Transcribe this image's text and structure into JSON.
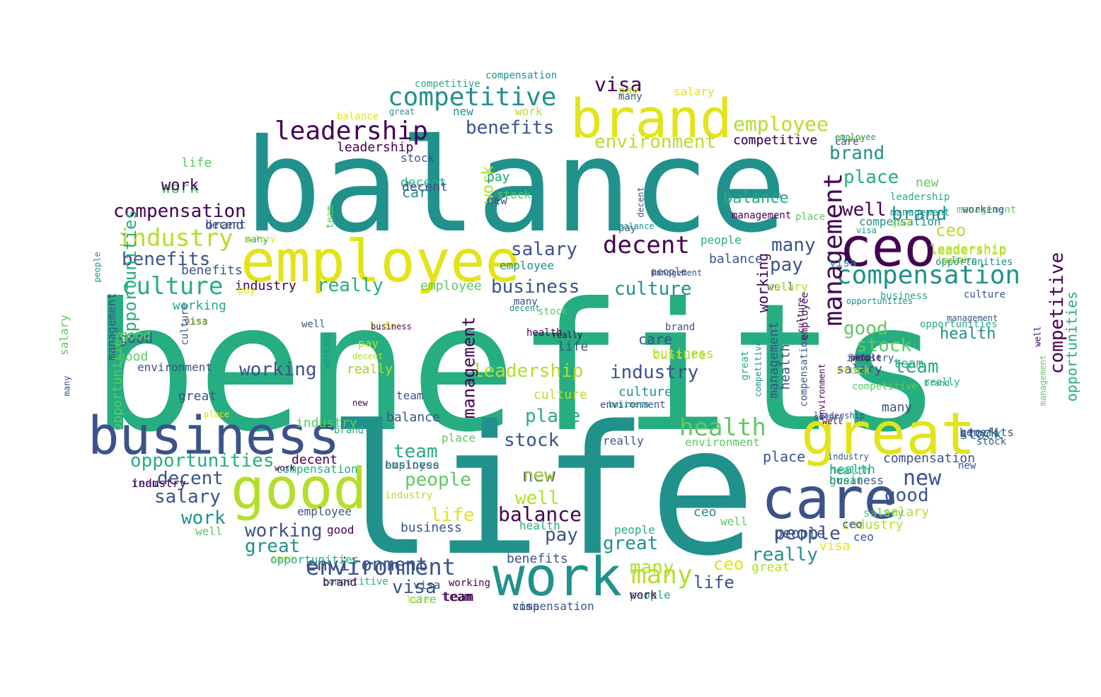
{
  "palette": {
    "c1": "#440154",
    "c2": "#3b528b",
    "c3": "#21918c",
    "c4": "#26ad81",
    "c5": "#5ec962",
    "c6": "#b5de2b",
    "c7": "#e2e418"
  },
  "words": [
    {
      "text": "benefits",
      "c": "c4"
    },
    {
      "text": "life",
      "c": "c3"
    },
    {
      "text": "balance",
      "c": "c3"
    },
    {
      "text": "employee",
      "c": "c7"
    },
    {
      "text": "brand",
      "c": "c7"
    },
    {
      "text": "business",
      "c": "c2"
    },
    {
      "text": "great",
      "c": "c7"
    },
    {
      "text": "care",
      "c": "c2"
    },
    {
      "text": "good",
      "c": "c6"
    },
    {
      "text": "work",
      "c": "c3"
    },
    {
      "text": "ceo",
      "c": "c1"
    },
    {
      "text": "competitive",
      "c": "c3"
    },
    {
      "text": "leadership",
      "c": "c1"
    },
    {
      "text": "compensation",
      "c": "c3"
    },
    {
      "text": "management",
      "c": "c1"
    },
    {
      "text": "industry",
      "c": "c6"
    },
    {
      "text": "culture",
      "c": "c4"
    },
    {
      "text": "decent",
      "c": "c1"
    },
    {
      "text": "environment",
      "c": "c2"
    },
    {
      "text": "health",
      "c": "c5"
    },
    {
      "text": "visa",
      "c": "c1"
    },
    {
      "text": "benefits",
      "c": "c2"
    },
    {
      "text": "employee",
      "c": "c6"
    },
    {
      "text": "environment",
      "c": "c6"
    },
    {
      "text": "compensation",
      "c": "c1"
    },
    {
      "text": "benefits",
      "c": "c2"
    },
    {
      "text": "salary",
      "c": "c2"
    },
    {
      "text": "business",
      "c": "c2"
    },
    {
      "text": "really",
      "c": "c4"
    },
    {
      "text": "culture",
      "c": "c3"
    },
    {
      "text": "industry",
      "c": "c2"
    },
    {
      "text": "working",
      "c": "c2"
    },
    {
      "text": "leadership",
      "c": "c6"
    },
    {
      "text": "opportunities",
      "c": "c4"
    },
    {
      "text": "place",
      "c": "c4"
    },
    {
      "text": "stock",
      "c": "c2"
    },
    {
      "text": "team",
      "c": "c4"
    },
    {
      "text": "new",
      "c": "c2"
    },
    {
      "text": "people",
      "c": "c5"
    },
    {
      "text": "many",
      "c": "c6"
    },
    {
      "text": "pay",
      "c": "c2"
    },
    {
      "text": "brand",
      "c": "c3"
    },
    {
      "text": "brand",
      "c": "c3"
    },
    {
      "text": "place",
      "c": "c4"
    },
    {
      "text": "well",
      "c": "c1"
    },
    {
      "text": "many",
      "c": "c2"
    },
    {
      "text": "pay",
      "c": "c2"
    },
    {
      "text": "ceo",
      "c": "c6"
    },
    {
      "text": "good",
      "c": "c5"
    },
    {
      "text": "stock",
      "c": "c5"
    },
    {
      "text": "team",
      "c": "c4"
    },
    {
      "text": "new",
      "c": "c2"
    },
    {
      "text": "good",
      "c": "c2"
    },
    {
      "text": "competitive",
      "c": "c1"
    },
    {
      "text": "opportunities",
      "c": "c4"
    },
    {
      "text": "salary",
      "c": "c2"
    },
    {
      "text": "decent",
      "c": "c2"
    },
    {
      "text": "work",
      "c": "c3"
    },
    {
      "text": "working",
      "c": "c2"
    },
    {
      "text": "great",
      "c": "c3"
    },
    {
      "text": "environment",
      "c": "c2"
    },
    {
      "text": "visa",
      "c": "c2"
    },
    {
      "text": "team",
      "c": "c1"
    },
    {
      "text": "balance",
      "c": "c4"
    },
    {
      "text": "stock",
      "c": "c3"
    },
    {
      "text": "place",
      "c": "c2"
    },
    {
      "text": "leadership",
      "c": "c6"
    },
    {
      "text": "balance",
      "c": "c1"
    },
    {
      "text": "new",
      "c": "c6"
    },
    {
      "text": "well",
      "c": "c6"
    },
    {
      "text": "life",
      "c": "c7"
    },
    {
      "text": "people",
      "c": "c2"
    },
    {
      "text": "really",
      "c": "c3"
    },
    {
      "text": "ceo",
      "c": "c7"
    },
    {
      "text": "great",
      "c": "c3"
    },
    {
      "text": "many",
      "c": "c6"
    },
    {
      "text": "work",
      "c": "c6"
    },
    {
      "text": "employee",
      "c": "c5"
    },
    {
      "text": "competitive",
      "c": "c2"
    },
    {
      "text": "benefits",
      "c": "c2"
    },
    {
      "text": "business",
      "c": "c2"
    },
    {
      "text": "health",
      "c": "c3"
    },
    {
      "text": "pay",
      "c": "c4"
    },
    {
      "text": "compensation",
      "c": "c2"
    },
    {
      "text": "good",
      "c": "c2"
    },
    {
      "text": "salary",
      "c": "c6"
    },
    {
      "text": "industry",
      "c": "c6"
    },
    {
      "text": "visa",
      "c": "c7"
    },
    {
      "text": "team",
      "c": "c1"
    },
    {
      "text": "people",
      "c": "c4"
    },
    {
      "text": "life",
      "c": "c2"
    },
    {
      "text": "decent",
      "c": "c1"
    },
    {
      "text": "competitive",
      "c": "c4"
    },
    {
      "text": "working",
      "c": "c1"
    },
    {
      "text": "life",
      "c": "c7"
    },
    {
      "text": "compensation",
      "c": "c2"
    },
    {
      "text": "work",
      "c": "c5"
    },
    {
      "text": "leadership",
      "c": "c1"
    },
    {
      "text": "brand",
      "c": "c2"
    },
    {
      "text": "balance",
      "c": "c2"
    },
    {
      "text": "care",
      "c": "c3"
    },
    {
      "text": "industry",
      "c": "c1"
    },
    {
      "text": "culture",
      "c": "c6"
    },
    {
      "text": "business",
      "c": "c6"
    },
    {
      "text": "health",
      "c": "c2"
    },
    {
      "text": "salary",
      "c": "c2"
    },
    {
      "text": "good",
      "c": "c5"
    },
    {
      "text": "stock",
      "c": "c2"
    },
    {
      "text": "work",
      "c": "c1"
    },
    {
      "text": "benefits",
      "c": "c2"
    },
    {
      "text": "employee",
      "c": "c2"
    },
    {
      "text": "really",
      "c": "c3"
    },
    {
      "text": "place",
      "c": "c5"
    },
    {
      "text": "new",
      "c": "c5"
    },
    {
      "text": "team",
      "c": "c4"
    },
    {
      "text": "life",
      "c": "c5"
    },
    {
      "text": "care",
      "c": "c2"
    },
    {
      "text": "culture",
      "c": "c3"
    },
    {
      "text": "pay",
      "c": "c4"
    },
    {
      "text": "ceo",
      "c": "c3"
    },
    {
      "text": "decent",
      "c": "c4"
    },
    {
      "text": "management",
      "c": "c1"
    },
    {
      "text": "opportunities",
      "c": "c4"
    },
    {
      "text": "competitive",
      "c": "c1"
    },
    {
      "text": "people",
      "c": "c2"
    },
    {
      "text": "great",
      "c": "c6"
    },
    {
      "text": "health",
      "c": "c4"
    },
    {
      "text": "management",
      "c": "c2"
    },
    {
      "text": "business",
      "c": "c2"
    },
    {
      "text": "working",
      "c": "c1"
    },
    {
      "text": "industry",
      "c": "c5"
    },
    {
      "text": "visa",
      "c": "c2"
    },
    {
      "text": "employee",
      "c": "c4"
    },
    {
      "text": "environment",
      "c": "c5"
    },
    {
      "text": "well",
      "c": "c5"
    },
    {
      "text": "great",
      "c": "c2"
    },
    {
      "text": "salary",
      "c": "c5"
    },
    {
      "text": "good",
      "c": "c5"
    },
    {
      "text": "really",
      "c": "c6"
    },
    {
      "text": "ceo",
      "c": "c2"
    },
    {
      "text": "pay",
      "c": "c6"
    },
    {
      "text": "team",
      "c": "c2"
    },
    {
      "text": "stock",
      "c": "c2"
    },
    {
      "text": "opportunities",
      "c": "c5"
    },
    {
      "text": "care",
      "c": "c6"
    },
    {
      "text": "life",
      "c": "c2"
    },
    {
      "text": "many",
      "c": "c2"
    },
    {
      "text": "working",
      "c": "c4"
    },
    {
      "text": "compensation",
      "c": "c4"
    },
    {
      "text": "balance",
      "c": "c2"
    },
    {
      "text": "decent",
      "c": "c2"
    },
    {
      "text": "health",
      "c": "c4"
    },
    {
      "text": "culture",
      "c": "c6"
    },
    {
      "text": "leadership",
      "c": "c6"
    },
    {
      "text": "industry",
      "c": "c6"
    },
    {
      "text": "new",
      "c": "c2"
    },
    {
      "text": "place",
      "c": "c6"
    },
    {
      "text": "people",
      "c": "c4"
    },
    {
      "text": "brand",
      "c": "c4"
    },
    {
      "text": "business",
      "c": "c2"
    },
    {
      "text": "employee",
      "c": "c3"
    },
    {
      "text": "compensation",
      "c": "c3"
    },
    {
      "text": "visa",
      "c": "c3"
    },
    {
      "text": "well",
      "c": "c2"
    },
    {
      "text": "really",
      "c": "c2"
    },
    {
      "text": "great",
      "c": "c4"
    },
    {
      "text": "benefits",
      "c": "c2"
    },
    {
      "text": "stock",
      "c": "c6"
    },
    {
      "text": "salary",
      "c": "c5"
    },
    {
      "text": "management",
      "c": "c2"
    },
    {
      "text": "opportunities",
      "c": "c4"
    },
    {
      "text": "care",
      "c": "c5"
    },
    {
      "text": "life",
      "c": "c7"
    },
    {
      "text": "pay",
      "c": "c6"
    },
    {
      "text": "work",
      "c": "c1"
    },
    {
      "text": "people",
      "c": "c4"
    },
    {
      "text": "good",
      "c": "c1"
    },
    {
      "text": "health",
      "c": "c4"
    },
    {
      "text": "ceo",
      "c": "c2"
    },
    {
      "text": "well",
      "c": "c5"
    },
    {
      "text": "industry",
      "c": "c1"
    },
    {
      "text": "stock",
      "c": "c5"
    },
    {
      "text": "team",
      "c": "c2"
    },
    {
      "text": "new",
      "c": "c3"
    },
    {
      "text": "decent",
      "c": "c2"
    },
    {
      "text": "environment",
      "c": "c2"
    },
    {
      "text": "brand",
      "c": "c1"
    },
    {
      "text": "visa",
      "c": "c2"
    },
    {
      "text": "competitive",
      "c": "c4"
    },
    {
      "text": "compensation",
      "c": "c3"
    },
    {
      "text": "salary",
      "c": "c7"
    },
    {
      "text": "balance",
      "c": "c7"
    },
    {
      "text": "work",
      "c": "c6"
    },
    {
      "text": "team",
      "c": "c5"
    },
    {
      "text": "salary",
      "c": "c6"
    },
    {
      "text": "culture",
      "c": "c2"
    },
    {
      "text": "opportunities",
      "c": "c4"
    },
    {
      "text": "really",
      "c": "c4"
    },
    {
      "text": "great",
      "c": "c4"
    },
    {
      "text": "care",
      "c": "c2"
    },
    {
      "text": "stock",
      "c": "c2"
    },
    {
      "text": "management",
      "c": "c1"
    },
    {
      "text": "place",
      "c": "c5"
    },
    {
      "text": "many",
      "c": "c2"
    },
    {
      "text": "management",
      "c": "c5"
    },
    {
      "text": "leadership",
      "c": "c4"
    },
    {
      "text": "pay",
      "c": "c2"
    },
    {
      "text": "people",
      "c": "c2"
    },
    {
      "text": "business",
      "c": "c4"
    },
    {
      "text": "new",
      "c": "c2"
    },
    {
      "text": "environment",
      "c": "c2"
    },
    {
      "text": "many",
      "c": "c2"
    },
    {
      "text": "stock",
      "c": "c5"
    },
    {
      "text": "brand",
      "c": "c2"
    },
    {
      "text": "health",
      "c": "c1"
    },
    {
      "text": "employee",
      "c": "c1"
    },
    {
      "text": "industry",
      "c": "c2"
    },
    {
      "text": "competitive",
      "c": "c5"
    },
    {
      "text": "culture",
      "c": "c2"
    },
    {
      "text": "well",
      "c": "c2"
    },
    {
      "text": "visa",
      "c": "c2"
    },
    {
      "text": "pay",
      "c": "c7"
    },
    {
      "text": "many",
      "c": "c4"
    },
    {
      "text": "working",
      "c": "c2"
    },
    {
      "text": "management",
      "c": "c3"
    },
    {
      "text": "opportunities",
      "c": "c3"
    },
    {
      "text": "compensation",
      "c": "c2"
    },
    {
      "text": "culture",
      "c": "c1"
    },
    {
      "text": "leadership",
      "c": "c2"
    },
    {
      "text": "well",
      "c": "c1"
    },
    {
      "text": "work",
      "c": "c1"
    },
    {
      "text": "care",
      "c": "c2"
    },
    {
      "text": "place",
      "c": "c7"
    },
    {
      "text": "people",
      "c": "c3"
    },
    {
      "text": "balance",
      "c": "c3"
    },
    {
      "text": "decent",
      "c": "c2"
    },
    {
      "text": "employee",
      "c": "c3"
    },
    {
      "text": "industry",
      "c": "c2"
    },
    {
      "text": "great",
      "c": "c3"
    },
    {
      "text": "visa",
      "c": "c3"
    },
    {
      "text": "salary",
      "c": "c7"
    },
    {
      "text": "competitive",
      "c": "c3"
    },
    {
      "text": "environment",
      "c": "c1"
    },
    {
      "text": "good",
      "c": "c6"
    },
    {
      "text": "culture",
      "c": "c3"
    },
    {
      "text": "management",
      "c": "c5"
    },
    {
      "text": "well",
      "c": "c1"
    },
    {
      "text": "leadership",
      "c": "c3"
    },
    {
      "text": "decent",
      "c": "c3"
    },
    {
      "text": "opportunities",
      "c": "c3"
    },
    {
      "text": "management",
      "c": "c2"
    },
    {
      "text": "management",
      "c": "c2"
    },
    {
      "text": "business",
      "c": "c3"
    },
    {
      "text": "really",
      "c": "c1"
    },
    {
      "text": "health",
      "c": "c6"
    },
    {
      "text": "people",
      "c": "c1"
    },
    {
      "text": "decent",
      "c": "c6"
    },
    {
      "text": "new",
      "c": "c1"
    },
    {
      "text": "life",
      "c": "c6"
    },
    {
      "text": "working",
      "c": "c3"
    },
    {
      "text": "salary",
      "c": "c2"
    },
    {
      "text": "brand",
      "c": "c4"
    },
    {
      "text": "business",
      "c": "c1"
    },
    {
      "text": "many",
      "c": "c2"
    },
    {
      "text": "really",
      "c": "c6"
    },
    {
      "text": "place",
      "c": "c1"
    },
    {
      "text": "team",
      "c": "c4"
    },
    {
      "text": "great",
      "c": "c3"
    },
    {
      "text": "ceo",
      "c": "c1"
    },
    {
      "text": "well",
      "c": "c5"
    },
    {
      "text": "work",
      "c": "c1"
    },
    {
      "text": "care",
      "c": "c6"
    },
    {
      "text": "many",
      "c": "c2"
    },
    {
      "text": "good",
      "c": "c2"
    },
    {
      "text": "team",
      "c": "c7"
    },
    {
      "text": "management",
      "c": "c2"
    }
  ]
}
